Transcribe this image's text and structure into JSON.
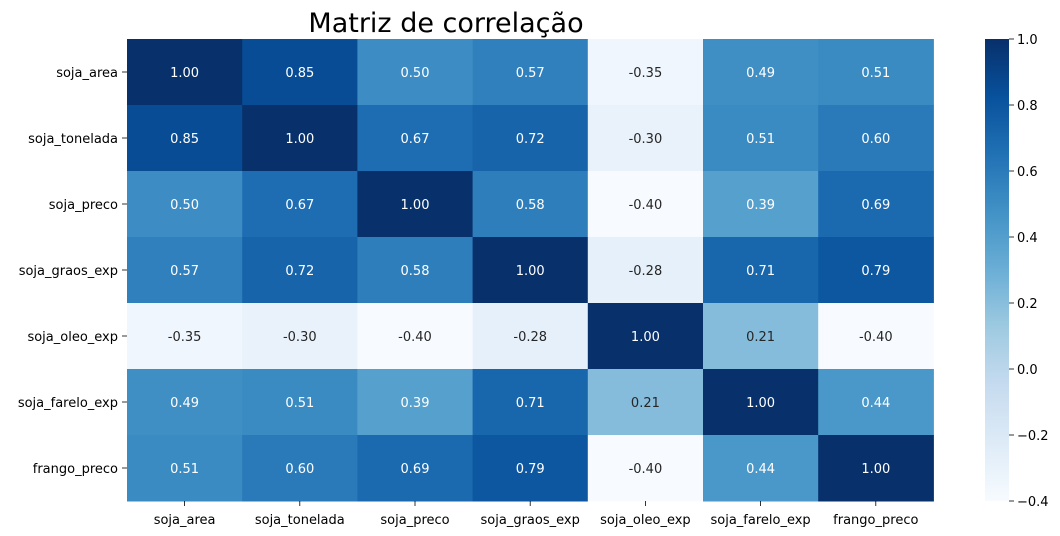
{
  "chart_data": {
    "type": "heatmap",
    "title": "Matriz de correlação",
    "xlabel": "",
    "ylabel": "",
    "x_categories": [
      "soja_area",
      "soja_tonelada",
      "soja_preco",
      "soja_graos_exp",
      "soja_oleo_exp",
      "soja_farelo_exp",
      "frango_preco"
    ],
    "y_categories": [
      "soja_area",
      "soja_tonelada",
      "soja_preco",
      "soja_graos_exp",
      "soja_oleo_exp",
      "soja_farelo_exp",
      "frango_preco"
    ],
    "values": [
      [
        1.0,
        0.85,
        0.5,
        0.57,
        -0.35,
        0.49,
        0.51
      ],
      [
        0.85,
        1.0,
        0.67,
        0.72,
        -0.3,
        0.51,
        0.6
      ],
      [
        0.5,
        0.67,
        1.0,
        0.58,
        -0.4,
        0.39,
        0.69
      ],
      [
        0.57,
        0.72,
        0.58,
        1.0,
        -0.28,
        0.71,
        0.79
      ],
      [
        -0.35,
        -0.3,
        -0.4,
        -0.28,
        1.0,
        0.21,
        -0.4
      ],
      [
        0.49,
        0.51,
        0.39,
        0.71,
        0.21,
        1.0,
        0.44
      ],
      [
        0.51,
        0.6,
        0.69,
        0.79,
        -0.4,
        0.44,
        1.0
      ]
    ],
    "value_format": "0.00",
    "colormap": "Blues",
    "colorbar": {
      "range": [
        -0.4,
        1.0
      ],
      "ticks": [
        1.0,
        0.8,
        0.6,
        0.4,
        0.2,
        0.0,
        -0.2,
        -0.4
      ],
      "tick_labels": [
        "1.0",
        "0.8",
        "0.6",
        "0.4",
        "0.2",
        "0.0",
        "−0.2",
        "−0.4"
      ]
    },
    "grid": false,
    "text_color_light": "#ffffff",
    "text_color_dark": "#262626"
  }
}
